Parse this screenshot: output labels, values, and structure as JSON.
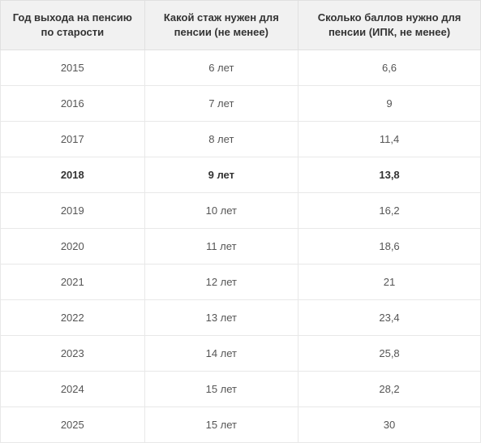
{
  "table": {
    "columns": [
      "Год выхода на пенсию по старости",
      "Какой стаж нужен для пенсии (не менее)",
      "Сколько баллов нужно для пенсии (ИПК, не менее)"
    ],
    "rows": [
      {
        "year": "2015",
        "stage": "6 лет",
        "points": "6,6",
        "bold": false
      },
      {
        "year": "2016",
        "stage": "7 лет",
        "points": "9",
        "bold": false
      },
      {
        "year": "2017",
        "stage": "8 лет",
        "points": "11,4",
        "bold": false
      },
      {
        "year": "2018",
        "stage": "9 лет",
        "points": "13,8",
        "bold": true
      },
      {
        "year": "2019",
        "stage": "10 лет",
        "points": "16,2",
        "bold": false
      },
      {
        "year": "2020",
        "stage": "11 лет",
        "points": "18,6",
        "bold": false
      },
      {
        "year": "2021",
        "stage": "12 лет",
        "points": "21",
        "bold": false
      },
      {
        "year": "2022",
        "stage": "13 лет",
        "points": "23,4",
        "bold": false
      },
      {
        "year": "2023",
        "stage": "14 лет",
        "points": "25,8",
        "bold": false
      },
      {
        "year": "2024",
        "stage": "15 лет",
        "points": "28,2",
        "bold": false
      },
      {
        "year": "2025",
        "stage": "15 лет",
        "points": "30",
        "bold": false
      }
    ],
    "header_bg": "#f1f1f1",
    "border_color": "#e0e0e0",
    "row_border_color": "#e8e8e8",
    "text_color": "#555555",
    "header_text_color": "#333333",
    "font_size": 13
  }
}
